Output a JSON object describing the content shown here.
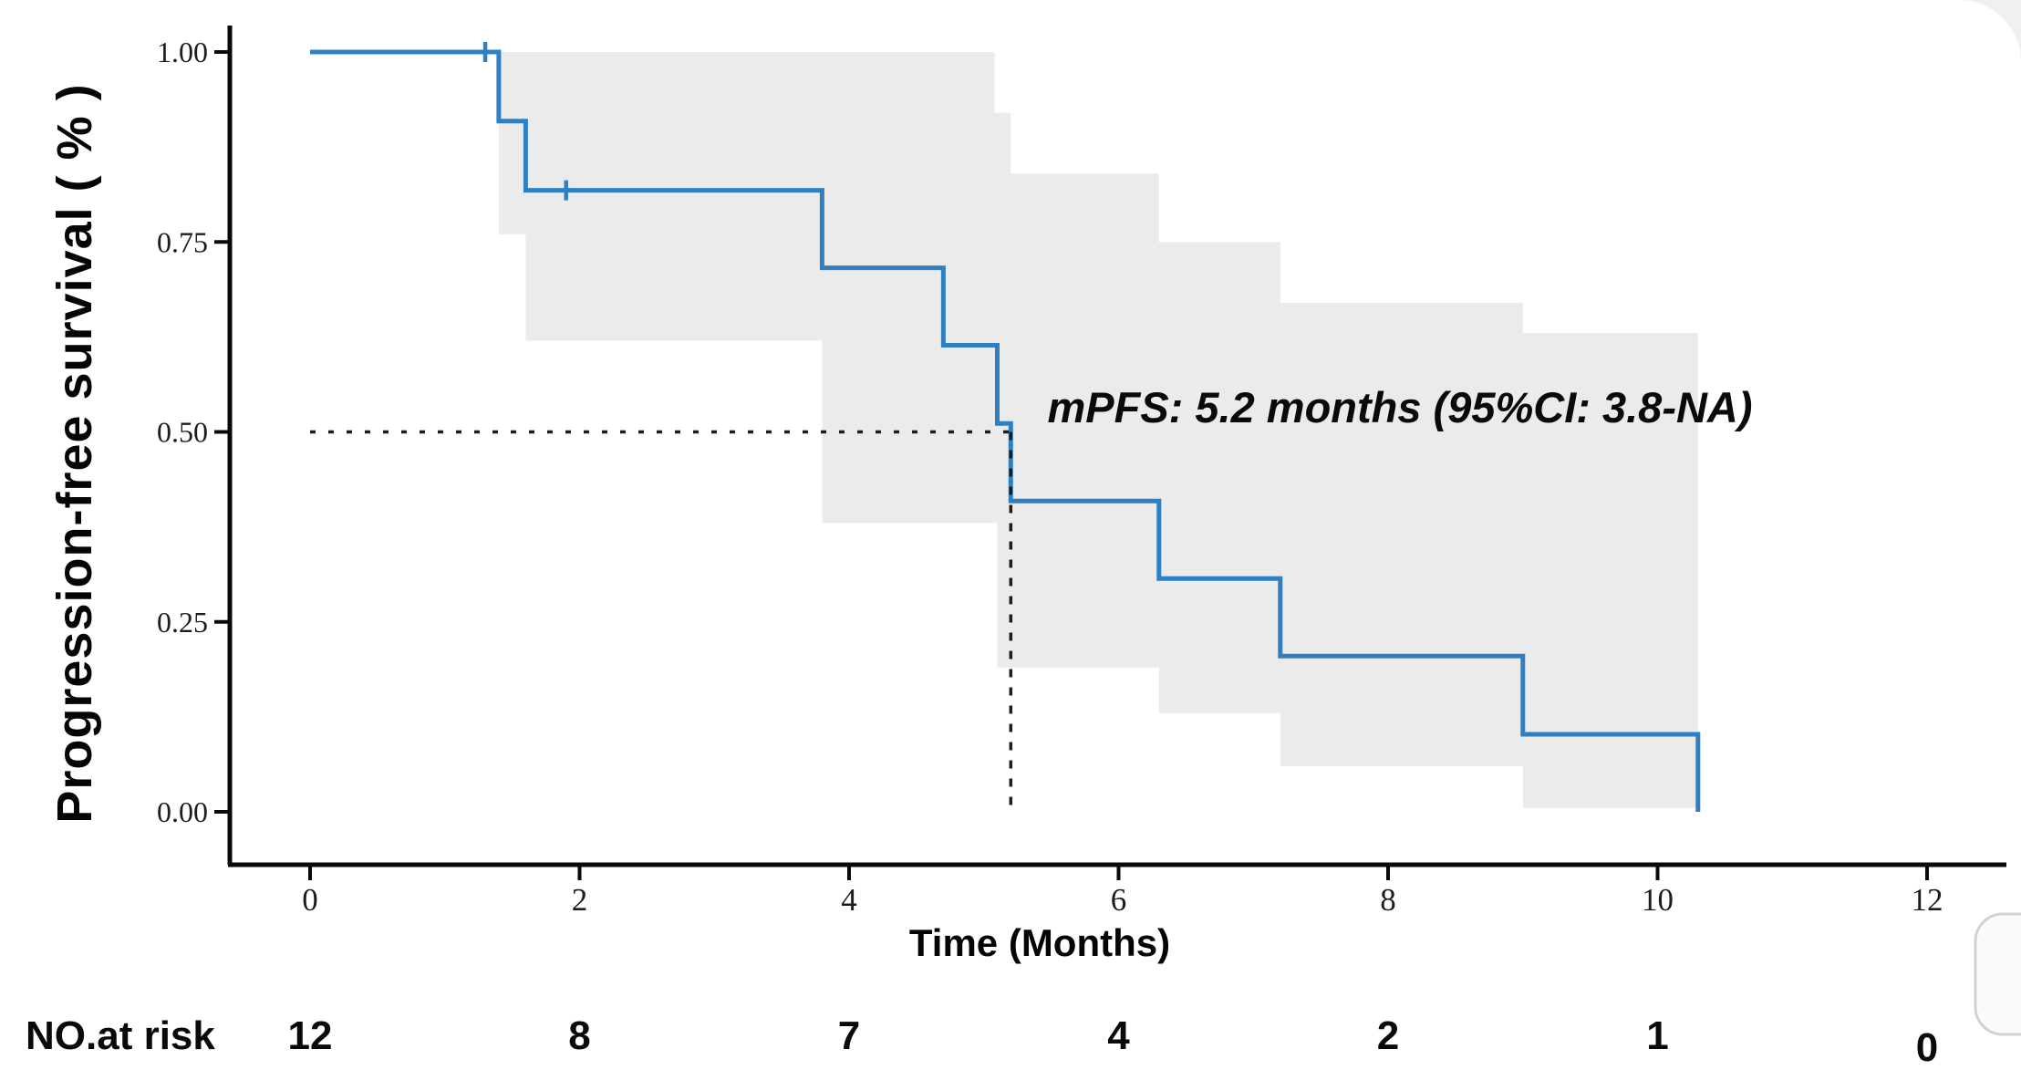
{
  "annotation": {
    "text": "mPFS: 5.2 months (95%CI: 3.8-NA)"
  },
  "axes": {
    "y_label": "Progression-free survival ( % )",
    "x_label": "Time (Months)",
    "y_ticks": [
      "1.00",
      "0.75",
      "0.50",
      "0.25",
      "0.00"
    ],
    "x_ticks": [
      "0",
      "2",
      "4",
      "6",
      "8",
      "10",
      "12"
    ]
  },
  "risk_table": {
    "label": "NO.at risk",
    "values": [
      "12",
      "8",
      "7",
      "4",
      "2",
      "1",
      "0"
    ]
  },
  "chart_data": {
    "type": "line",
    "subtype": "kaplan-meier-step",
    "title": "",
    "xlabel": "Time (Months)",
    "ylabel": "Progression-free survival ( % )",
    "xlim": [
      0,
      12
    ],
    "ylim": [
      0.0,
      1.0
    ],
    "grid": false,
    "start_point": [
      0,
      1.0
    ],
    "events": [
      [
        1.4,
        0.909
      ],
      [
        1.6,
        0.818
      ],
      [
        3.8,
        0.716
      ],
      [
        4.7,
        0.614
      ],
      [
        5.1,
        0.511
      ],
      [
        5.2,
        0.409
      ],
      [
        6.3,
        0.307
      ],
      [
        7.2,
        0.205
      ],
      [
        9.0,
        0.102
      ],
      [
        10.3,
        0.0
      ]
    ],
    "censors": [
      [
        1.3,
        1.0
      ],
      [
        1.9,
        0.818
      ]
    ],
    "ci_upper": [
      [
        1.4,
        1.0
      ],
      [
        5.08,
        1.0
      ],
      [
        5.08,
        0.92
      ],
      [
        5.2,
        0.92
      ],
      [
        5.2,
        0.84
      ],
      [
        6.3,
        0.84
      ],
      [
        6.3,
        0.75
      ],
      [
        7.2,
        0.75
      ],
      [
        7.2,
        0.67
      ],
      [
        9.0,
        0.67
      ],
      [
        9.0,
        0.63
      ],
      [
        10.3,
        0.63
      ]
    ],
    "ci_lower": [
      [
        1.4,
        0.76
      ],
      [
        1.6,
        0.76
      ],
      [
        1.6,
        0.62
      ],
      [
        3.8,
        0.62
      ],
      [
        3.8,
        0.38
      ],
      [
        5.1,
        0.38
      ],
      [
        5.1,
        0.19
      ],
      [
        6.3,
        0.19
      ],
      [
        6.3,
        0.13
      ],
      [
        7.2,
        0.13
      ],
      [
        7.2,
        0.06
      ],
      [
        9.0,
        0.06
      ],
      [
        9.0,
        0.005
      ],
      [
        10.3,
        0.005
      ]
    ],
    "median": {
      "time": 5.2,
      "survival": 0.5
    },
    "at_risk": {
      "times": [
        0,
        2,
        4,
        6,
        8,
        10,
        12
      ],
      "counts": [
        12,
        8,
        7,
        4,
        2,
        1,
        0
      ]
    },
    "colors": {
      "line": "#2e80c2",
      "ci_fill": "#ebebeb",
      "dash": "#1c1c1c",
      "axis": "#0a0a0a"
    }
  }
}
